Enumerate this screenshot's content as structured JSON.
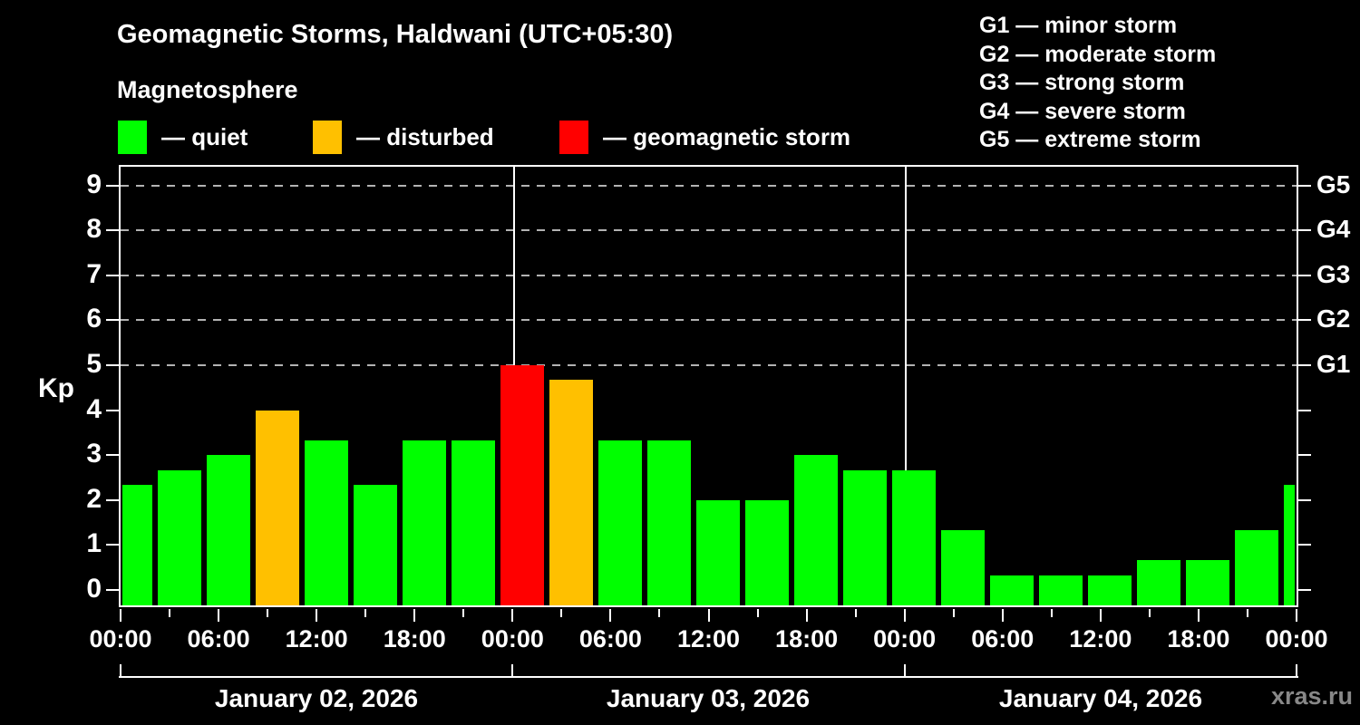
{
  "header": {
    "title": "Geomagnetic Storms, Haldwani (UTC+05:30)",
    "subtitle": "Magnetosphere",
    "legend": [
      {
        "label": "— quiet",
        "state": "quiet",
        "color": "#00ff00"
      },
      {
        "label": "— disturbed",
        "state": "disturbed",
        "color": "#ffc000"
      },
      {
        "label": "— geomagnetic storm",
        "state": "storm",
        "color": "#ff0000"
      }
    ],
    "g_scale_legend": [
      "G1 — minor storm",
      "G2 — moderate storm",
      "G3 — strong storm",
      "G4 — severe storm",
      "G5 — extreme storm"
    ]
  },
  "watermark": "xras.ru",
  "chart_data": {
    "type": "bar",
    "title": "Geomagnetic Storms, Haldwani (UTC+05:30)",
    "ylabel": "Kp",
    "ylim": [
      0,
      9.4
    ],
    "bar_interval_hours": 3,
    "bars_per_day": 8,
    "y_ticks_left": [
      "0",
      "1",
      "2",
      "3",
      "4",
      "5",
      "6",
      "7",
      "8",
      "9"
    ],
    "y_ticks_right": [
      {
        "kp": 5,
        "label": "G1"
      },
      {
        "kp": 6,
        "label": "G2"
      },
      {
        "kp": 7,
        "label": "G3"
      },
      {
        "kp": 8,
        "label": "G4"
      },
      {
        "kp": 9,
        "label": "G5"
      }
    ],
    "dashed_gridlines_at_kp": [
      5,
      6,
      7,
      8,
      9
    ],
    "time_label_cycle": [
      "00:00",
      "06:00",
      "12:00",
      "18:00"
    ],
    "state_colors": {
      "quiet": "#00ff00",
      "disturbed": "#ffc000",
      "storm": "#ff0000"
    },
    "state_thresholds": {
      "disturbed_min_kp": 4,
      "storm_min_kp": 5
    },
    "days": [
      {
        "label": "January 02, 2026",
        "kp": [
          2.33,
          2.67,
          3.0,
          4.0,
          3.33,
          2.33,
          3.33,
          3.33
        ]
      },
      {
        "label": "January 03, 2026",
        "kp": [
          5.0,
          4.67,
          3.33,
          3.33,
          2.0,
          2.0,
          3.0,
          2.67
        ]
      },
      {
        "label": "January 04, 2026",
        "kp": [
          2.67,
          1.33,
          0.33,
          0.33,
          0.33,
          0.67,
          0.67,
          1.33
        ]
      }
    ],
    "trailing_partial_bar": {
      "kp": 2.33
    }
  }
}
